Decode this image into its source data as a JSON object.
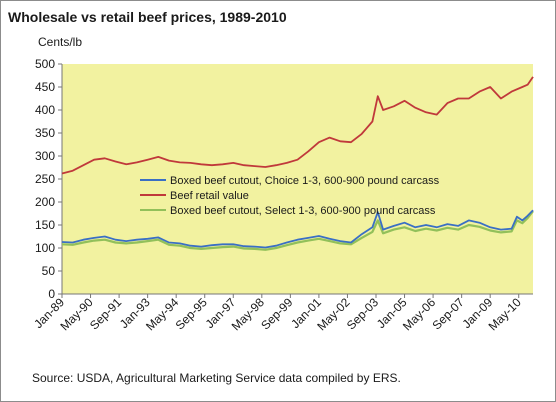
{
  "chart_data": {
    "type": "line",
    "title": "Wholesale vs retail beef prices, 1989-2010",
    "ylabel": "Cents/lb",
    "xlabel": "",
    "ylim": [
      0,
      500
    ],
    "yticks": [
      0,
      50,
      100,
      150,
      200,
      250,
      300,
      350,
      400,
      450,
      500
    ],
    "xlim": [
      1989.0,
      2011.0
    ],
    "x_tick_labels": [
      "Jan-89",
      "May-90",
      "Sep-91",
      "Jan-93",
      "May-94",
      "Sep-95",
      "Jan-97",
      "May-98",
      "Sep-99",
      "Jan-01",
      "May-02",
      "Sep-03",
      "Jan-05",
      "May-06",
      "Sep-07",
      "Jan-09",
      "May-10"
    ],
    "x_tick_values": [
      1989.0,
      1990.333,
      1991.667,
      1993.0,
      1994.333,
      1995.667,
      1997.0,
      1998.333,
      1999.667,
      2001.0,
      2002.333,
      2003.667,
      2005.0,
      2006.333,
      2007.667,
      2009.0,
      2010.333
    ],
    "plot_background": "#f2f2a0",
    "grid": false,
    "legend_position": "center",
    "series": [
      {
        "name": "Boxed beef cutout, Choice 1-3, 600-900 pound carcass",
        "color": "#3a6fc4",
        "x": [
          1989.0,
          1989.5,
          1990.0,
          1990.5,
          1991.0,
          1991.5,
          1992.0,
          1992.5,
          1993.0,
          1993.5,
          1994.0,
          1994.5,
          1995.0,
          1995.5,
          1996.0,
          1996.5,
          1997.0,
          1997.5,
          1998.0,
          1998.5,
          1999.0,
          1999.5,
          2000.0,
          2000.5,
          2001.0,
          2001.5,
          2002.0,
          2002.5,
          2003.0,
          2003.5,
          2003.75,
          2004.0,
          2004.5,
          2005.0,
          2005.5,
          2006.0,
          2006.5,
          2007.0,
          2007.5,
          2008.0,
          2008.5,
          2009.0,
          2009.5,
          2010.0,
          2010.25,
          2010.5,
          2010.75,
          2011.0
        ],
        "values": [
          113,
          112,
          118,
          122,
          125,
          118,
          115,
          118,
          120,
          123,
          112,
          110,
          105,
          103,
          106,
          108,
          108,
          104,
          103,
          101,
          105,
          112,
          118,
          122,
          126,
          120,
          115,
          112,
          130,
          145,
          178,
          140,
          148,
          155,
          145,
          150,
          145,
          152,
          148,
          160,
          155,
          145,
          140,
          142,
          168,
          160,
          170,
          182
        ]
      },
      {
        "name": "Beef retail value",
        "color": "#c0393b",
        "x": [
          1989.0,
          1989.5,
          1990.0,
          1990.5,
          1991.0,
          1991.5,
          1992.0,
          1992.5,
          1993.0,
          1993.5,
          1994.0,
          1994.5,
          1995.0,
          1995.5,
          1996.0,
          1996.5,
          1997.0,
          1997.5,
          1998.0,
          1998.5,
          1999.0,
          1999.5,
          2000.0,
          2000.5,
          2001.0,
          2001.5,
          2002.0,
          2002.5,
          2003.0,
          2003.5,
          2003.75,
          2004.0,
          2004.5,
          2005.0,
          2005.5,
          2006.0,
          2006.5,
          2007.0,
          2007.5,
          2008.0,
          2008.5,
          2009.0,
          2009.5,
          2010.0,
          2010.5,
          2010.75,
          2011.0
        ],
        "values": [
          262,
          268,
          280,
          292,
          295,
          288,
          282,
          286,
          292,
          298,
          290,
          286,
          285,
          282,
          280,
          282,
          285,
          280,
          278,
          276,
          280,
          285,
          292,
          310,
          330,
          340,
          332,
          330,
          348,
          375,
          430,
          400,
          408,
          420,
          405,
          395,
          390,
          415,
          425,
          425,
          440,
          450,
          425,
          440,
          450,
          455,
          472
        ]
      },
      {
        "name": "Boxed beef cutout, Select 1-3, 600-900 pound carcass",
        "color": "#92c05a",
        "x": [
          1989.0,
          1989.5,
          1990.0,
          1990.5,
          1991.0,
          1991.5,
          1992.0,
          1992.5,
          1993.0,
          1993.5,
          1994.0,
          1994.5,
          1995.0,
          1995.5,
          1996.0,
          1996.5,
          1997.0,
          1997.5,
          1998.0,
          1998.5,
          1999.0,
          1999.5,
          2000.0,
          2000.5,
          2001.0,
          2001.5,
          2002.0,
          2002.5,
          2003.0,
          2003.5,
          2003.75,
          2004.0,
          2004.5,
          2005.0,
          2005.5,
          2006.0,
          2006.5,
          2007.0,
          2007.5,
          2008.0,
          2008.5,
          2009.0,
          2009.5,
          2010.0,
          2010.25,
          2010.5,
          2010.75,
          2011.0
        ],
        "values": [
          108,
          107,
          112,
          116,
          118,
          112,
          110,
          112,
          115,
          118,
          107,
          105,
          100,
          98,
          100,
          102,
          103,
          99,
          98,
          96,
          100,
          106,
          112,
          116,
          120,
          115,
          110,
          108,
          122,
          135,
          160,
          132,
          140,
          145,
          137,
          142,
          138,
          144,
          140,
          150,
          146,
          138,
          134,
          136,
          160,
          154,
          165,
          180
        ]
      }
    ]
  },
  "source_note": "Source: USDA, Agricultural Marketing Service data compiled by ERS."
}
